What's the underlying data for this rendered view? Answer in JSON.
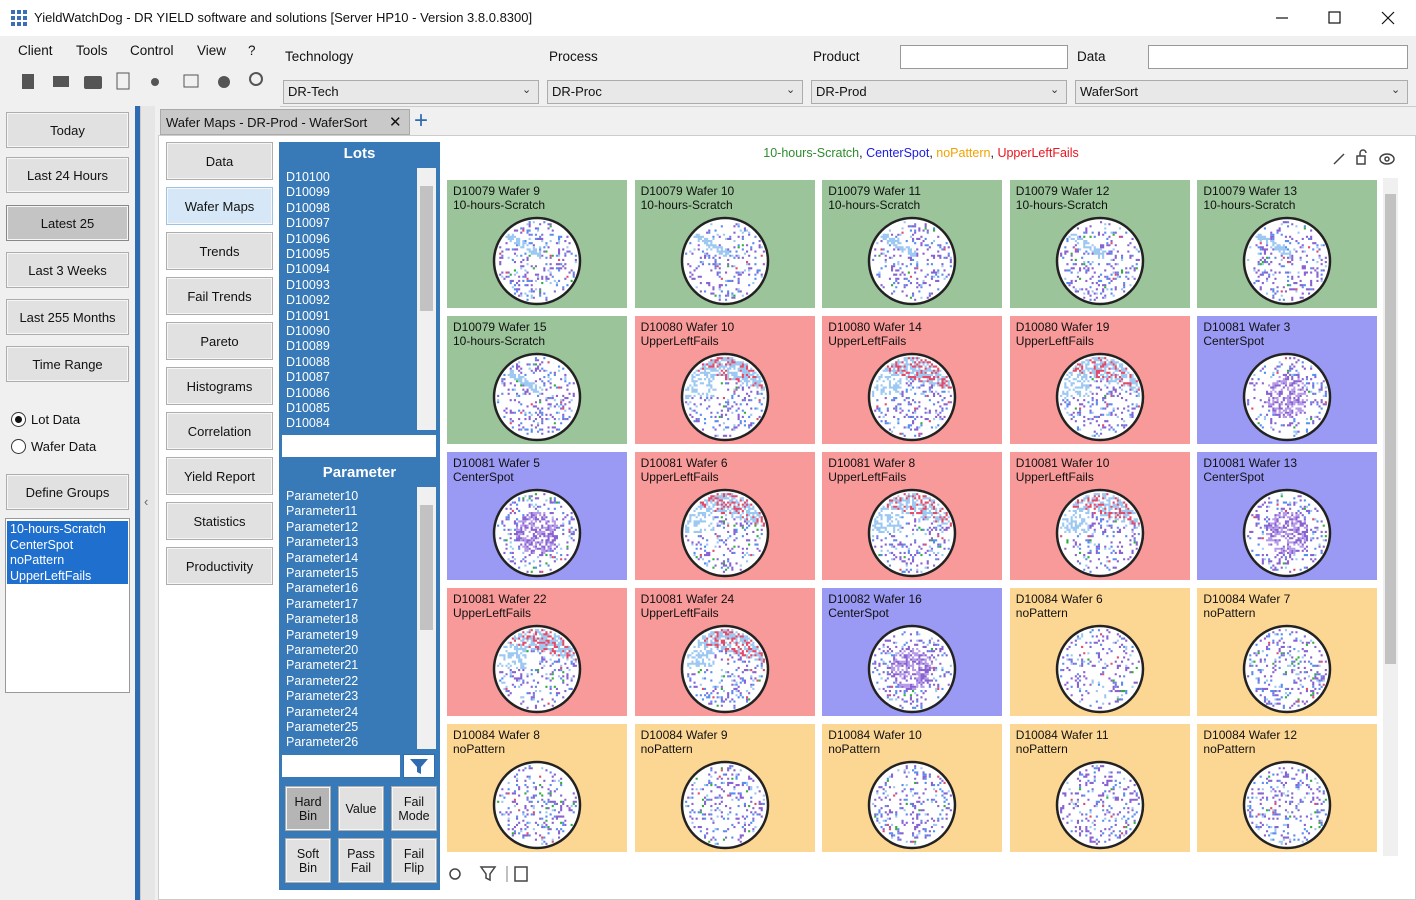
{
  "window": {
    "title": "YieldWatchDog - DR YIELD software and solutions [Server HP10 - Version 3.8.0.8300]"
  },
  "menu": [
    "Client",
    "Tools",
    "Control",
    "View",
    "?"
  ],
  "filters": [
    {
      "label": "Technology",
      "value": "DR-Tech"
    },
    {
      "label": "Process",
      "value": "DR-Proc"
    },
    {
      "label": "Product",
      "value": "DR-Prod"
    },
    {
      "label": "Data",
      "value": "WaferSort"
    }
  ],
  "time_buttons": [
    {
      "label": "Today"
    },
    {
      "label": "Last 24 Hours"
    },
    {
      "label": "Latest 25",
      "selected": true
    },
    {
      "label": "Last 3 Weeks"
    },
    {
      "label": "Last 255 Months"
    },
    {
      "label": "Time Range"
    }
  ],
  "data_mode": [
    {
      "label": "Lot Data",
      "checked": true
    },
    {
      "label": "Wafer Data",
      "checked": false
    }
  ],
  "define_groups": "Define Groups",
  "groups": [
    {
      "name": "10-hours-Scratch",
      "color": "#9cc49a",
      "legend_color": "#2e8b2e"
    },
    {
      "name": "CenterSpot",
      "color": "#9a9af5",
      "legend_color": "#1c1ce0"
    },
    {
      "name": "noPattern",
      "color": "#fcd794",
      "legend_color": "#f2a100"
    },
    {
      "name": "UpperLeftFails",
      "color": "#f89a9a",
      "legend_color": "#e8141e"
    }
  ],
  "tab": "Wafer Maps - DR-Prod - WaferSort",
  "views": [
    {
      "label": "Data"
    },
    {
      "label": "Wafer Maps",
      "selected": true
    },
    {
      "label": "Trends"
    },
    {
      "label": "Fail Trends"
    },
    {
      "label": "Pareto"
    },
    {
      "label": "Histograms"
    },
    {
      "label": "Correlation"
    },
    {
      "label": "Yield Report"
    },
    {
      "label": "Statistics"
    },
    {
      "label": "Productivity"
    }
  ],
  "lots": {
    "title": "Lots",
    "items": [
      "D10100",
      "D10099",
      "D10098",
      "D10097",
      "D10096",
      "D10095",
      "D10094",
      "D10093",
      "D10092",
      "D10091",
      "D10090",
      "D10089",
      "D10088",
      "D10087",
      "D10086",
      "D10085",
      "D10084"
    ]
  },
  "parameters": {
    "title": "Parameter",
    "items": [
      "Parameter10",
      "Parameter11",
      "Parameter12",
      "Parameter13",
      "Parameter14",
      "Parameter15",
      "Parameter16",
      "Parameter17",
      "Parameter18",
      "Parameter19",
      "Parameter20",
      "Parameter21",
      "Parameter22",
      "Parameter23",
      "Parameter24",
      "Parameter25",
      "Parameter26"
    ]
  },
  "bin_buttons": [
    {
      "label": "Hard Bin",
      "selected": true
    },
    {
      "label": "Value"
    },
    {
      "label": "Fail Mode"
    },
    {
      "label": "Soft Bin"
    },
    {
      "label": "Pass Fail"
    },
    {
      "label": "Fail Flip"
    }
  ],
  "wafers": [
    {
      "title": "D10079  Wafer 9",
      "pattern": "10-hours-Scratch"
    },
    {
      "title": "D10079  Wafer 10",
      "pattern": "10-hours-Scratch"
    },
    {
      "title": "D10079  Wafer 11",
      "pattern": "10-hours-Scratch"
    },
    {
      "title": "D10079  Wafer 12",
      "pattern": "10-hours-Scratch"
    },
    {
      "title": "D10079  Wafer 13",
      "pattern": "10-hours-Scratch"
    },
    {
      "title": "D10079  Wafer 15",
      "pattern": "10-hours-Scratch"
    },
    {
      "title": "D10080  Wafer 10",
      "pattern": "UpperLeftFails"
    },
    {
      "title": "D10080  Wafer 14",
      "pattern": "UpperLeftFails"
    },
    {
      "title": "D10080  Wafer 19",
      "pattern": "UpperLeftFails"
    },
    {
      "title": "D10081  Wafer 3",
      "pattern": "CenterSpot"
    },
    {
      "title": "D10081  Wafer 5",
      "pattern": "CenterSpot"
    },
    {
      "title": "D10081  Wafer 6",
      "pattern": "UpperLeftFails"
    },
    {
      "title": "D10081  Wafer 8",
      "pattern": "UpperLeftFails"
    },
    {
      "title": "D10081  Wafer 10",
      "pattern": "UpperLeftFails"
    },
    {
      "title": "D10081  Wafer 13",
      "pattern": "CenterSpot"
    },
    {
      "title": "D10081  Wafer 22",
      "pattern": "UpperLeftFails"
    },
    {
      "title": "D10081  Wafer 24",
      "pattern": "UpperLeftFails"
    },
    {
      "title": "D10082  Wafer 16",
      "pattern": "CenterSpot"
    },
    {
      "title": "D10084  Wafer 6",
      "pattern": "noPattern"
    },
    {
      "title": "D10084  Wafer 7",
      "pattern": "noPattern"
    },
    {
      "title": "D10084  Wafer 8",
      "pattern": "noPattern"
    },
    {
      "title": "D10084  Wafer 9",
      "pattern": "noPattern"
    },
    {
      "title": "D10084  Wafer 10",
      "pattern": "noPattern"
    },
    {
      "title": "D10084  Wafer 11",
      "pattern": "noPattern"
    },
    {
      "title": "D10084  Wafer 12",
      "pattern": "noPattern"
    }
  ]
}
